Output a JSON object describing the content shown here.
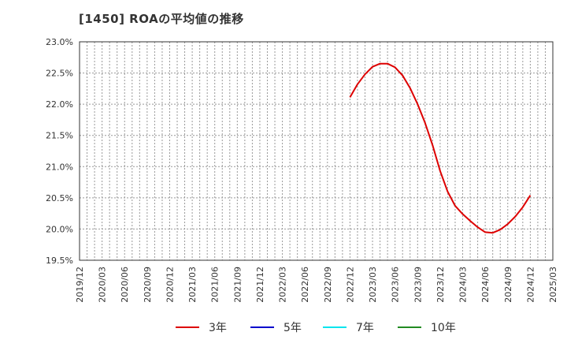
{
  "chart_data": {
    "type": "line",
    "title": "[1450]  ROAの平均値の推移",
    "xlabel": "",
    "ylabel": "",
    "ylim": [
      19.5,
      23.0
    ],
    "yticks": [
      "19.5%",
      "20.0%",
      "20.5%",
      "21.0%",
      "21.5%",
      "22.0%",
      "22.5%",
      "23.0%"
    ],
    "ytick_values": [
      19.5,
      20.0,
      20.5,
      21.0,
      21.5,
      22.0,
      22.5,
      23.0
    ],
    "xticks": [
      "2019/12",
      "2020/03",
      "2020/06",
      "2020/09",
      "2020/12",
      "2021/03",
      "2021/06",
      "2021/09",
      "2021/12",
      "2022/03",
      "2022/06",
      "2022/09",
      "2022/12",
      "2023/03",
      "2023/06",
      "2023/09",
      "2023/12",
      "2024/03",
      "2024/06",
      "2024/09",
      "2024/12",
      "2025/03"
    ],
    "grid": true,
    "legend_position": "bottom",
    "series": [
      {
        "name": "3年",
        "color": "#dd0000",
        "x": [
          "2022/12",
          "2023/01",
          "2023/02",
          "2023/03",
          "2023/04",
          "2023/05",
          "2023/06",
          "2023/07",
          "2023/08",
          "2023/09",
          "2023/10",
          "2023/11",
          "2023/12",
          "2024/01",
          "2024/02",
          "2024/03",
          "2024/04",
          "2024/05",
          "2024/06",
          "2024/07",
          "2024/08",
          "2024/09",
          "2024/10",
          "2024/11",
          "2024/12"
        ],
        "values": [
          22.11,
          22.32,
          22.48,
          22.6,
          22.65,
          22.65,
          22.59,
          22.46,
          22.26,
          22.0,
          21.7,
          21.34,
          20.93,
          20.6,
          20.37,
          20.24,
          20.13,
          20.03,
          19.95,
          19.94,
          19.99,
          20.08,
          20.2,
          20.35,
          20.54
        ]
      },
      {
        "name": "5年",
        "color": "#0000cc",
        "x": [],
        "values": []
      },
      {
        "name": "7年",
        "color": "#00e5ee",
        "x": [],
        "values": []
      },
      {
        "name": "10年",
        "color": "#228b22",
        "x": [],
        "values": []
      }
    ]
  }
}
